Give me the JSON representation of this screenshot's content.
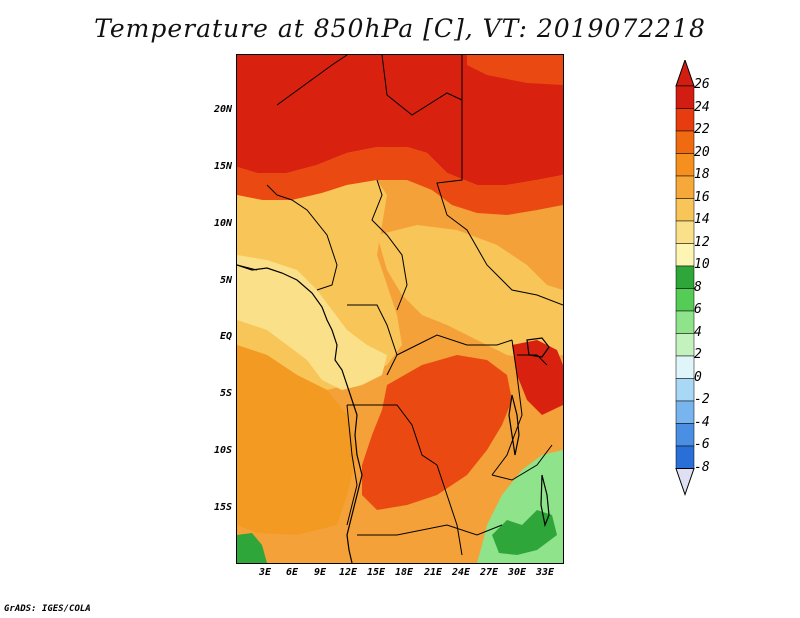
{
  "title": "Temperature at 850hPa [C], VT: 2019072218",
  "credit": "GrADS: IGES/COLA",
  "lat_labels": [
    "20N",
    "15N",
    "10N",
    "5N",
    "EQ",
    "5S",
    "10S",
    "15S"
  ],
  "lon_labels": [
    "3E",
    "6E",
    "9E",
    "12E",
    "15E",
    "18E",
    "21E",
    "24E",
    "27E",
    "30E",
    "33E"
  ],
  "colorbar": {
    "labels": [
      "26",
      "24",
      "22",
      "20",
      "18",
      "16",
      "14",
      "12",
      "10",
      "8",
      "6",
      "4",
      "2",
      "0",
      "-2",
      "-4",
      "-6",
      "-8"
    ],
    "colors": [
      "#d21e12",
      "#e63c10",
      "#f06a12",
      "#f5901e",
      "#f6a83a",
      "#f8c558",
      "#fbe08a",
      "#fdf5b4",
      "#2ea63a",
      "#55cc55",
      "#8fe38a",
      "#c4f2bf",
      "#e0f5fa",
      "#a8d8f5",
      "#78b5ee",
      "#4a8fe4",
      "#2a6ed8",
      "#1a4ec0",
      "#0c2e98",
      "#060c66"
    ],
    "top_arrow_color": "#d21e12",
    "bottom_arrow_color": "#e0e0f5"
  },
  "map": {
    "background_color": "#f5a13a",
    "colors": {
      "hot": "#d8220f",
      "very_warm": "#ea4a12",
      "warm": "#f39a22",
      "mild": "#f8c558",
      "cool": "#fbe08a",
      "cold_green": "#8fe38a",
      "deep_green": "#2ea63a"
    }
  }
}
